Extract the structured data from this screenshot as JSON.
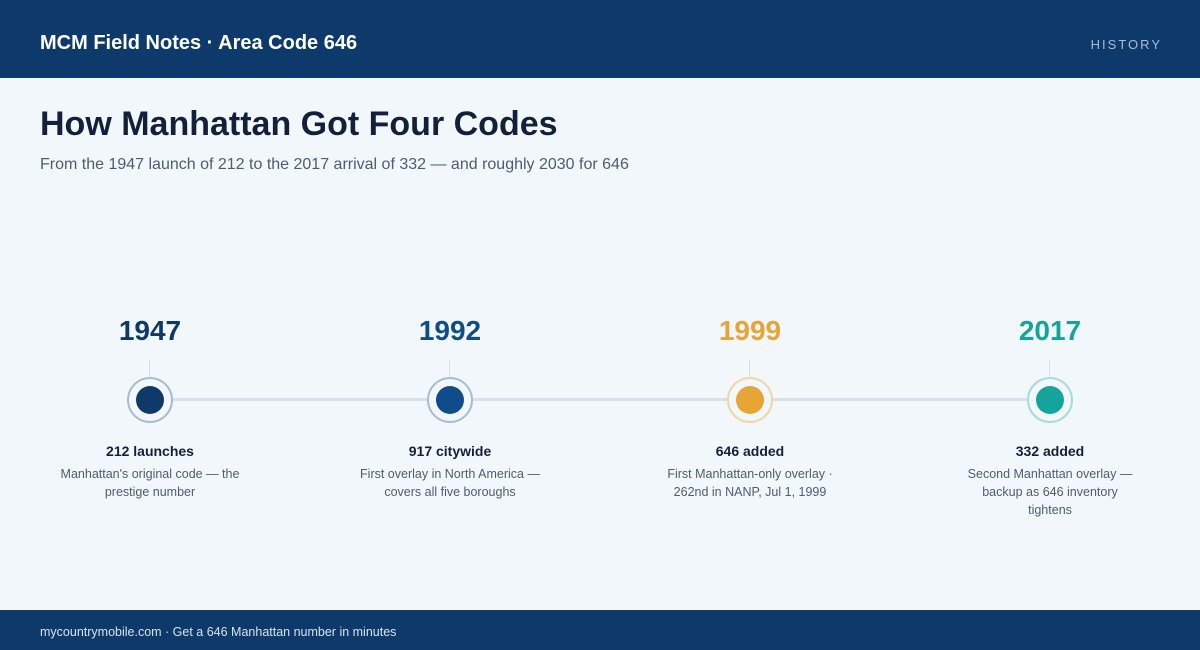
{
  "header": {
    "brand": "MCM Field Notes · Area Code 646",
    "section": "HISTORY"
  },
  "main": {
    "title": "How Manhattan Got Four Codes",
    "subtitle": "From the 1947 launch of 212 to the 2017 arrival of 332 — and roughly 2030 for 646"
  },
  "timeline": {
    "milestones": [
      {
        "year": "1947",
        "title": "212 launches",
        "description": "Manhattan's original code — the prestige number",
        "color": "#0e3a6a",
        "ring_color": "#a8bbcf"
      },
      {
        "year": "1992",
        "title": "917 citywide",
        "description": "First overlay in North America — covers all five boroughs",
        "color": "#0f4d8a",
        "ring_color": "#a9bdd2"
      },
      {
        "year": "1999",
        "title": "646 added",
        "description": "First Manhattan-only overlay · 262nd in NANP, Jul 1, 1999",
        "color": "#e6a535",
        "ring_color": "#f0d6a2"
      },
      {
        "year": "2017",
        "title": "332 added",
        "description": "Second Manhattan overlay — backup as 646 inventory tightens",
        "color": "#15a49c",
        "ring_color": "#a5dcd8"
      }
    ]
  },
  "footer": {
    "text": "mycountrymobile.com · Get a 646 Manhattan number in minutes"
  }
}
